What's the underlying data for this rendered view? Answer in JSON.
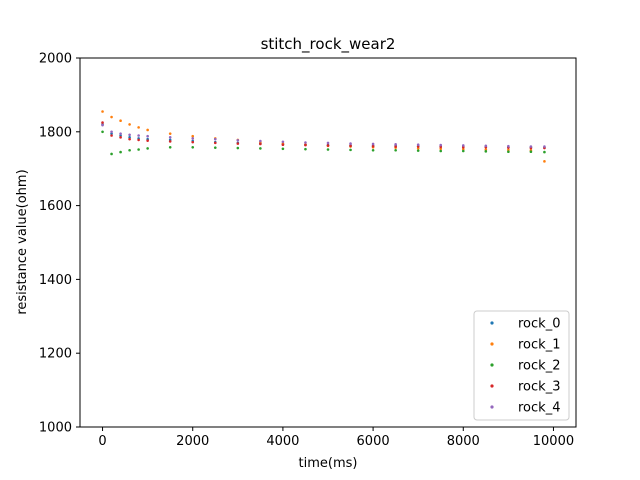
{
  "chart_data": {
    "type": "scatter",
    "title": "stitch_rock_wear2",
    "xlabel": "time(ms)",
    "ylabel": "resistance value(ohm)",
    "xlim": [
      -500,
      10500
    ],
    "ylim": [
      1000,
      2000
    ],
    "xticks": [
      0,
      2000,
      4000,
      6000,
      8000,
      10000
    ],
    "yticks": [
      1000,
      1200,
      1400,
      1600,
      1800,
      2000
    ],
    "xtick_labels": [
      "0",
      "2000",
      "4000",
      "6000",
      "8000",
      "10000"
    ],
    "ytick_labels": [
      "1000",
      "1200",
      "1400",
      "1600",
      "1800",
      "2000"
    ],
    "legend_placement": "lower-right",
    "grid": false,
    "series": [
      {
        "name": "rock_0",
        "color": "#1f77b4",
        "x": [
          0,
          200,
          400,
          600,
          800,
          1000,
          1500,
          2000,
          2500,
          3000,
          3500,
          4000,
          4500,
          5000,
          5500,
          6000,
          6500,
          7000,
          7500,
          8000,
          8500,
          9000,
          9500,
          9800
        ],
        "y": [
          1820,
          1795,
          1790,
          1785,
          1782,
          1780,
          1778,
          1775,
          1772,
          1770,
          1768,
          1766,
          1765,
          1764,
          1763,
          1762,
          1762,
          1761,
          1760,
          1760,
          1759,
          1758,
          1758,
          1757
        ]
      },
      {
        "name": "rock_1",
        "color": "#ff7f0e",
        "x": [
          0,
          200,
          400,
          600,
          800,
          1000,
          1500,
          2000,
          2500,
          3000,
          3500,
          4000,
          4500,
          5000,
          5500,
          6000,
          6500,
          7000,
          7500,
          8000,
          8500,
          9000,
          9500,
          9800
        ],
        "y": [
          1855,
          1840,
          1830,
          1820,
          1812,
          1805,
          1795,
          1788,
          1782,
          1778,
          1772,
          1768,
          1765,
          1762,
          1760,
          1758,
          1757,
          1755,
          1754,
          1753,
          1752,
          1751,
          1750,
          1720
        ]
      },
      {
        "name": "rock_2",
        "color": "#2ca02c",
        "x": [
          0,
          200,
          400,
          600,
          800,
          1000,
          1500,
          2000,
          2500,
          3000,
          3500,
          4000,
          4500,
          5000,
          5500,
          6000,
          6500,
          7000,
          7500,
          8000,
          8500,
          9000,
          9500,
          9800
        ],
        "y": [
          1800,
          1740,
          1745,
          1750,
          1752,
          1755,
          1758,
          1758,
          1757,
          1756,
          1755,
          1754,
          1753,
          1752,
          1751,
          1750,
          1750,
          1749,
          1748,
          1748,
          1747,
          1746,
          1746,
          1745
        ]
      },
      {
        "name": "rock_3",
        "color": "#d62728",
        "x": [
          0,
          200,
          400,
          600,
          800,
          1000,
          1500,
          2000,
          2500,
          3000,
          3500,
          4000,
          4500,
          5000,
          5500,
          6000,
          6500,
          7000,
          7500,
          8000,
          8500,
          9000,
          9500,
          9800
        ],
        "y": [
          1825,
          1790,
          1785,
          1780,
          1778,
          1776,
          1774,
          1772,
          1770,
          1768,
          1767,
          1765,
          1764,
          1763,
          1762,
          1761,
          1760,
          1760,
          1759,
          1758,
          1758,
          1757,
          1756,
          1756
        ]
      },
      {
        "name": "rock_4",
        "color": "#9467bd",
        "x": [
          0,
          200,
          400,
          600,
          800,
          1000,
          1500,
          2000,
          2500,
          3000,
          3500,
          4000,
          4500,
          5000,
          5500,
          6000,
          6500,
          7000,
          7500,
          8000,
          8500,
          9000,
          9500,
          9800
        ],
        "y": [
          1818,
          1800,
          1795,
          1792,
          1790,
          1788,
          1785,
          1782,
          1780,
          1777,
          1775,
          1773,
          1771,
          1770,
          1768,
          1767,
          1766,
          1765,
          1764,
          1763,
          1762,
          1761,
          1760,
          1760
        ]
      }
    ]
  }
}
